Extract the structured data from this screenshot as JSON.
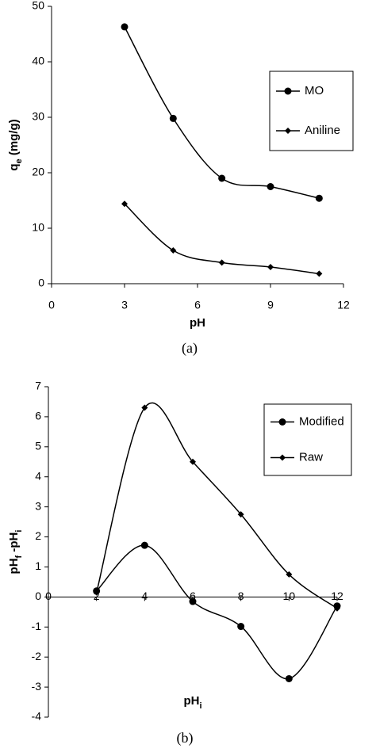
{
  "chart_data": [
    {
      "type": "line",
      "caption": "(a)",
      "x_label": [
        "pH"
      ],
      "y_label": [
        "q",
        "e",
        " (mg/g)"
      ],
      "xlim": [
        0,
        12
      ],
      "xticks": [
        0,
        3,
        6,
        9,
        12
      ],
      "ylim": [
        0,
        50
      ],
      "yticks": [
        0,
        10,
        20,
        30,
        40,
        50
      ],
      "x": [
        3,
        5,
        7,
        9,
        11
      ],
      "smooth": true,
      "legend": "right",
      "series": [
        {
          "name": "MO",
          "color": "#000000",
          "marker": "circle",
          "values": [
            46.3,
            29.8,
            19.0,
            17.5,
            15.4
          ]
        },
        {
          "name": "Aniline",
          "color": "#000000",
          "marker": "diamond",
          "values": [
            14.4,
            6.0,
            3.8,
            3.0,
            1.8
          ]
        }
      ]
    },
    {
      "type": "line",
      "caption": "(b)",
      "x_label": [
        "pH",
        "i"
      ],
      "y_label": [
        "pH",
        "f",
        " -pH",
        "i"
      ],
      "xlim": [
        0,
        12
      ],
      "xticks": [
        0,
        2,
        4,
        6,
        8,
        10,
        12
      ],
      "ylim": [
        -4,
        7
      ],
      "yticks": [
        -4,
        -3,
        -2,
        -1,
        0,
        1,
        2,
        3,
        4,
        5,
        6,
        7
      ],
      "x": [
        2,
        4,
        6,
        8,
        10,
        12
      ],
      "smooth": true,
      "legend": "right",
      "series": [
        {
          "name": "Modified",
          "color": "#000000",
          "marker": "circle",
          "values": [
            0.2,
            1.72,
            -0.15,
            -0.98,
            -2.72,
            -0.3
          ]
        },
        {
          "name": "Raw",
          "color": "#000000",
          "marker": "diamond",
          "values": [
            0.15,
            6.3,
            4.5,
            2.75,
            0.75,
            -0.38
          ]
        }
      ]
    }
  ]
}
